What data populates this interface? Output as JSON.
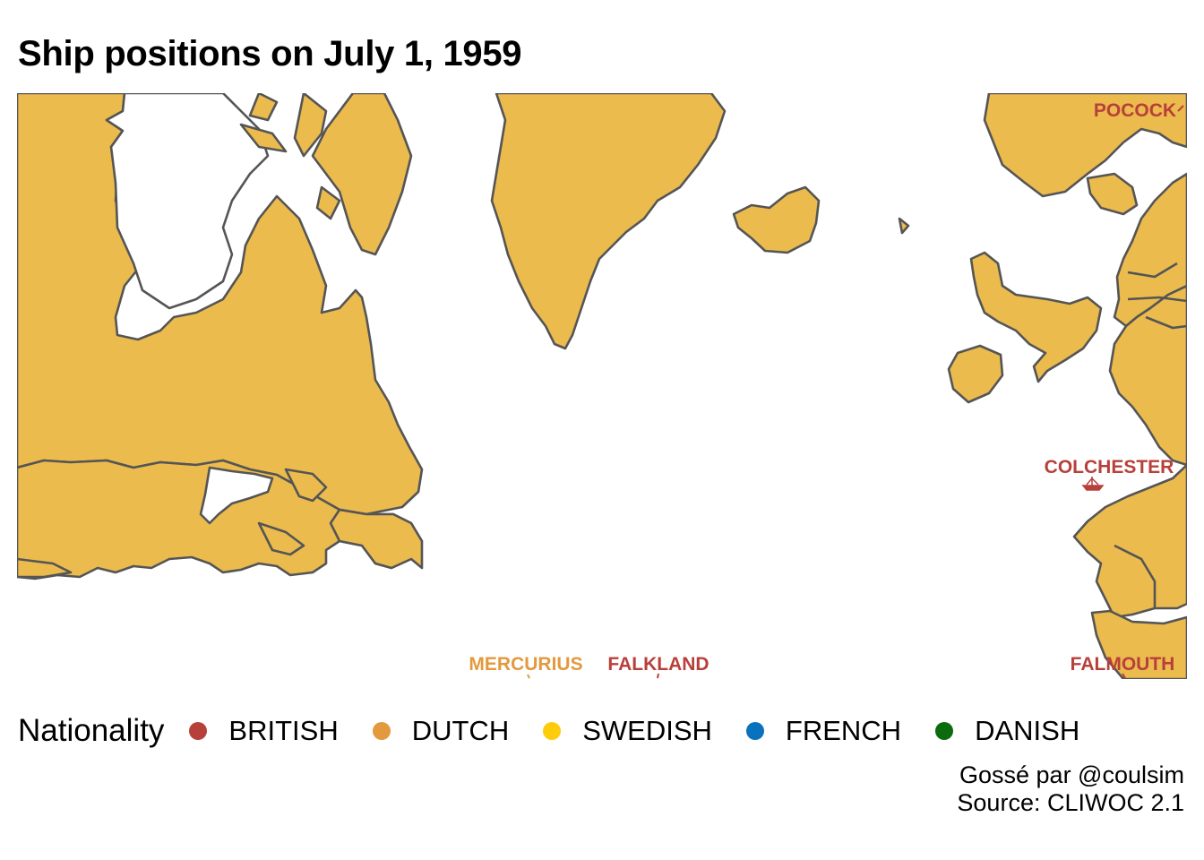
{
  "title": "Ship positions on July 1, 1959",
  "colors": {
    "land": "#ebbb4e",
    "border": "#555555",
    "sea": "#ffffff"
  },
  "legend": {
    "title": "Nationality",
    "items": [
      {
        "label": "BRITISH",
        "color": "#b8403a"
      },
      {
        "label": "DUTCH",
        "color": "#e3993d"
      },
      {
        "label": "SWEDISH",
        "color": "#fdcc0c"
      },
      {
        "label": "FRENCH",
        "color": "#0a72bd"
      },
      {
        "label": "DANISH",
        "color": "#0c6b0c"
      }
    ]
  },
  "ships": [
    {
      "name": "POCOCK",
      "nationality": "BRITISH",
      "color": "#b8403a"
    },
    {
      "name": "COLCHESTER",
      "nationality": "BRITISH",
      "color": "#b8403a"
    },
    {
      "name": "MERCURIUS",
      "nationality": "DUTCH",
      "color": "#e3993d"
    },
    {
      "name": "FALKLAND",
      "nationality": "BRITISH",
      "color": "#b8403a"
    },
    {
      "name": "FALMOUTH",
      "nationality": "BRITISH",
      "color": "#b8403a"
    }
  ],
  "caption": {
    "line1": "Gossé par @coulsim",
    "line2": "Source: CLIWOC 2.1"
  }
}
